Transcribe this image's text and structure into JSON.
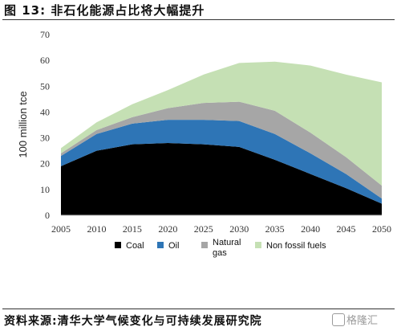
{
  "header": {
    "title": "图 13:  非石化能源占比将大幅提升"
  },
  "footer": {
    "source": "资料来源:清华大学气候变化与可持续发展研究院",
    "watermark": "格隆汇"
  },
  "chart_data": {
    "type": "area",
    "stacked": true,
    "x": [
      2005,
      2010,
      2015,
      2020,
      2025,
      2030,
      2035,
      2040,
      2045,
      2050
    ],
    "xticks": [
      "2005",
      "2010",
      "2015",
      "2020",
      "2025",
      "2030",
      "2035",
      "2040",
      "2045",
      "2050"
    ],
    "ylabel": "100 million tce",
    "ylim": [
      0,
      70
    ],
    "yticks": [
      "0",
      "10",
      "20",
      "30",
      "40",
      "50",
      "60",
      "70"
    ],
    "grid": false,
    "legend_position": "bottom",
    "series": [
      {
        "name": "Coal",
        "color": "#000000",
        "values": [
          19,
          25,
          27.5,
          28,
          27.5,
          26.5,
          21.5,
          16,
          10.5,
          4.5
        ]
      },
      {
        "name": "Oil",
        "color": "#2e75b6",
        "values": [
          4,
          6.5,
          8,
          9,
          9.5,
          10,
          10,
          8,
          5.5,
          2
        ]
      },
      {
        "name": "Natural gas",
        "color": "#a6a6a6",
        "values": [
          1,
          1.5,
          2.5,
          4.5,
          6.5,
          7.5,
          9,
          8,
          6.5,
          5
        ]
      },
      {
        "name": "Non fossil fuels",
        "color": "#c5e0b4",
        "values": [
          2,
          3,
          5,
          7,
          11,
          15,
          19,
          26,
          32,
          40
        ]
      }
    ]
  }
}
